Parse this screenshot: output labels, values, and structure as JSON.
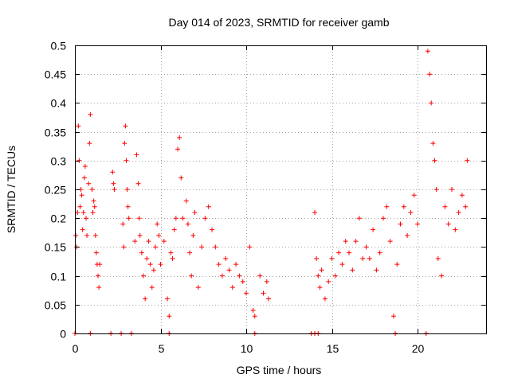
{
  "chart_data": {
    "type": "scatter",
    "title": "Day 014 of 2023, SRMTID for receiver gamb",
    "xlabel": "GPS time / hours",
    "ylabel": "SRMTID / TECUs",
    "xlim": [
      0,
      24
    ],
    "ylim": [
      0,
      0.5
    ],
    "x_ticks": [
      0,
      5,
      10,
      15,
      20
    ],
    "x_tick_labels": [
      "0",
      "5",
      "10",
      "15",
      "20"
    ],
    "y_ticks": [
      0,
      0.05,
      0.1,
      0.15,
      0.2,
      0.25,
      0.3,
      0.35,
      0.4,
      0.45,
      0.5
    ],
    "y_tick_labels": [
      "0",
      "0.05",
      "0.1",
      "0.15",
      "0.2",
      "0.25",
      "0.3",
      "0.35",
      "0.4",
      "0.45",
      "0.5"
    ],
    "grid": true,
    "marker": "plus",
    "color": "#ff0000",
    "series": [
      {
        "name": "SRMTID",
        "x": [
          0.05,
          0.1,
          0.15,
          0.2,
          0.25,
          0.3,
          0.35,
          0.4,
          0.45,
          0.5,
          0.55,
          0.6,
          0.65,
          0.7,
          0.8,
          0.85,
          0.9,
          1.0,
          1.05,
          1.1,
          1.15,
          1.2,
          1.25,
          1.3,
          1.35,
          1.4,
          1.45,
          2.2,
          2.25,
          2.3,
          2.8,
          2.85,
          2.9,
          2.95,
          3.0,
          3.05,
          3.1,
          3.15,
          3.5,
          3.6,
          3.7,
          3.75,
          3.8,
          3.9,
          4.0,
          4.1,
          4.2,
          4.3,
          4.4,
          4.5,
          4.6,
          4.7,
          4.8,
          4.9,
          5.0,
          5.2,
          5.4,
          5.5,
          5.6,
          5.7,
          5.8,
          5.9,
          6.0,
          6.1,
          6.2,
          6.3,
          6.5,
          6.6,
          6.7,
          6.8,
          6.9,
          7.0,
          7.2,
          7.4,
          7.6,
          7.8,
          8.0,
          8.2,
          8.4,
          8.6,
          8.8,
          9.0,
          9.2,
          9.4,
          9.6,
          9.8,
          10.0,
          10.2,
          10.4,
          10.5,
          10.8,
          11.0,
          11.2,
          11.3,
          14.0,
          14.1,
          14.2,
          14.3,
          14.4,
          14.6,
          14.8,
          15.0,
          15.2,
          15.4,
          15.6,
          15.8,
          16.0,
          16.2,
          16.4,
          16.6,
          16.8,
          17.0,
          17.2,
          17.4,
          17.6,
          17.8,
          18.0,
          18.2,
          18.4,
          18.6,
          18.8,
          19.0,
          19.2,
          19.4,
          19.6,
          19.8,
          20.0,
          20.6,
          20.7,
          20.8,
          20.9,
          21.0,
          21.1,
          21.2,
          21.4,
          21.6,
          21.8,
          22.0,
          22.2,
          22.4,
          22.6,
          22.8,
          22.9,
          0.0,
          0.9,
          2.1,
          2.7,
          3.3,
          5.5,
          10.5,
          13.8,
          14.0,
          14.2,
          18.7,
          20.5
        ],
        "y": [
          0.17,
          0.15,
          0.21,
          0.36,
          0.3,
          0.22,
          0.25,
          0.24,
          0.18,
          0.21,
          0.27,
          0.29,
          0.2,
          0.17,
          0.26,
          0.33,
          0.38,
          0.25,
          0.21,
          0.23,
          0.22,
          0.17,
          0.14,
          0.12,
          0.1,
          0.08,
          0.12,
          0.28,
          0.26,
          0.25,
          0.19,
          0.15,
          0.33,
          0.36,
          0.3,
          0.25,
          0.22,
          0.2,
          0.16,
          0.31,
          0.26,
          0.2,
          0.17,
          0.14,
          0.1,
          0.06,
          0.13,
          0.16,
          0.12,
          0.08,
          0.11,
          0.15,
          0.19,
          0.17,
          0.12,
          0.16,
          0.06,
          0.03,
          0.14,
          0.13,
          0.18,
          0.2,
          0.32,
          0.34,
          0.27,
          0.2,
          0.23,
          0.19,
          0.14,
          0.1,
          0.17,
          0.21,
          0.08,
          0.15,
          0.2,
          0.22,
          0.18,
          0.15,
          0.12,
          0.1,
          0.13,
          0.11,
          0.08,
          0.12,
          0.1,
          0.09,
          0.07,
          0.15,
          0.04,
          0.03,
          0.1,
          0.07,
          0.09,
          0.06,
          0.21,
          0.13,
          0.1,
          0.08,
          0.11,
          0.06,
          0.09,
          0.13,
          0.1,
          0.14,
          0.12,
          0.16,
          0.14,
          0.11,
          0.16,
          0.2,
          0.13,
          0.15,
          0.13,
          0.18,
          0.11,
          0.14,
          0.2,
          0.22,
          0.16,
          0.03,
          0.12,
          0.19,
          0.22,
          0.17,
          0.21,
          0.24,
          0.19,
          0.49,
          0.45,
          0.4,
          0.33,
          0.3,
          0.25,
          0.13,
          0.1,
          0.22,
          0.19,
          0.25,
          0.18,
          0.21,
          0.24,
          0.22,
          0.3,
          0.0,
          0.0,
          0.0,
          0.0,
          0.0,
          0.0,
          0.0,
          0.0,
          0.0,
          0.0,
          0.0,
          0.0
        ]
      }
    ]
  }
}
